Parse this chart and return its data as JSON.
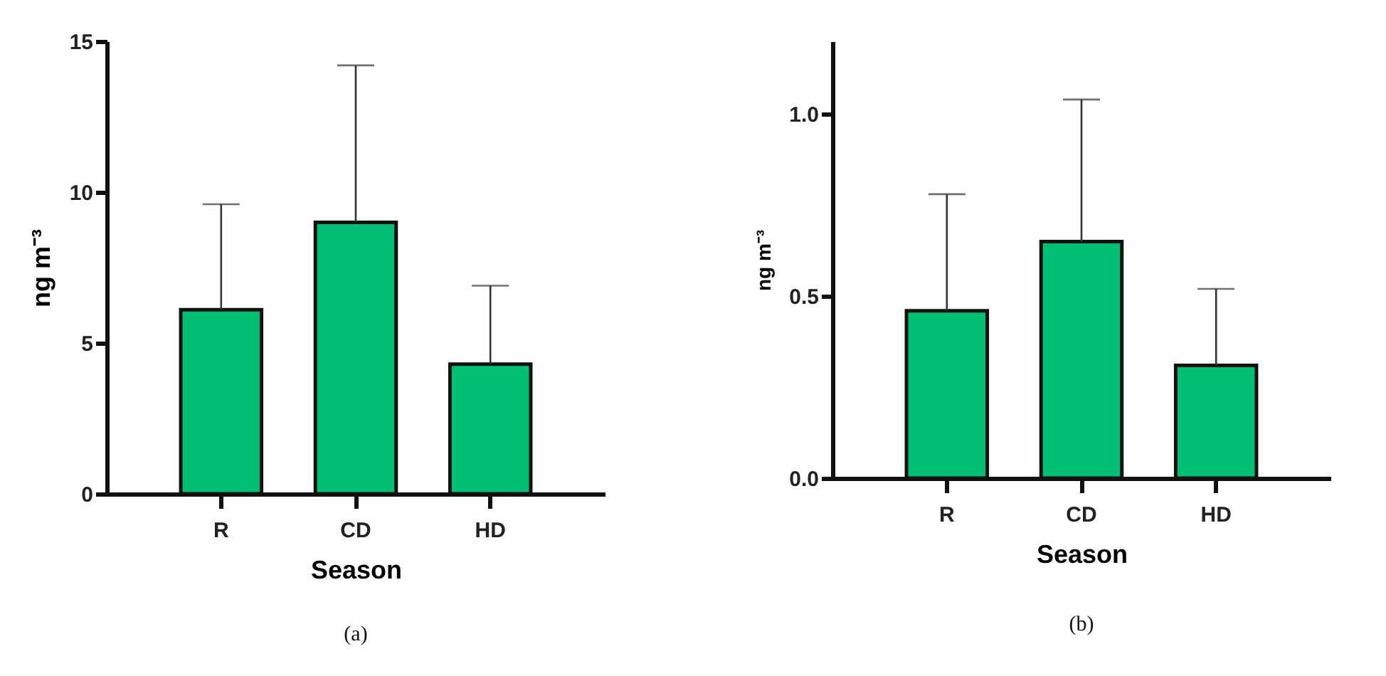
{
  "chart_data": [
    {
      "type": "bar",
      "categories": [
        "R",
        "CD",
        "HD"
      ],
      "values": [
        6.1,
        9.0,
        4.3
      ],
      "color": "#00bf72",
      "errors": [
        [
          6.1,
          9.6
        ],
        [
          9.0,
          14.2
        ],
        [
          4.3,
          6.9
        ]
      ],
      "xlabel": "Season",
      "ylabel": "ng m⁻³",
      "ylim": [
        0,
        15
      ],
      "yticks": [
        0,
        5,
        10,
        15
      ],
      "annotations": [
        "(a)"
      ]
    },
    {
      "type": "bar",
      "categories": [
        "R",
        "CD",
        "HD"
      ],
      "values": [
        0.46,
        0.65,
        0.31
      ],
      "color": "#00bf72",
      "errors": [
        [
          0.46,
          0.78
        ],
        [
          0.65,
          1.04
        ],
        [
          0.31,
          0.52
        ]
      ],
      "xlabel": "Season",
      "ylabel": "ng m⁻³",
      "ylim": [
        0,
        1.2
      ],
      "yticks": [
        {
          "value": 0,
          "label": "0.0"
        },
        0.5,
        {
          "value": 1,
          "label": "1.0"
        }
      ],
      "annotations": [
        "(b)"
      ]
    }
  ]
}
